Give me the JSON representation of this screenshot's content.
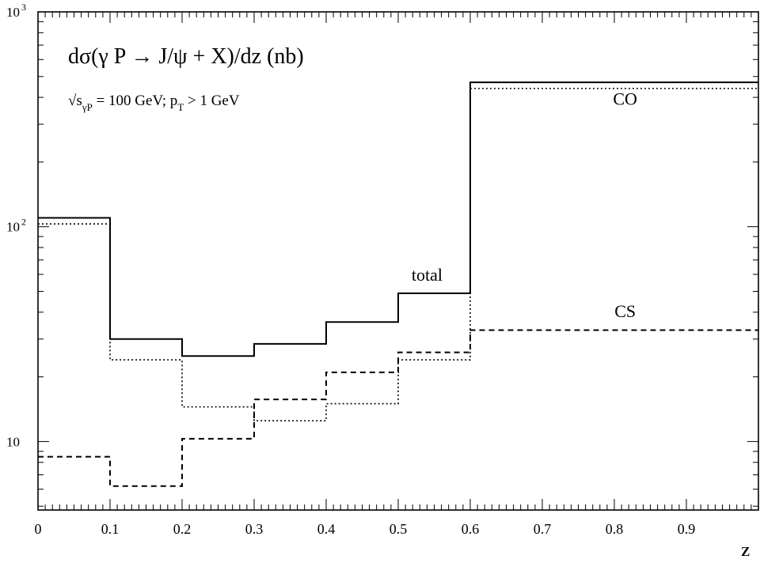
{
  "chart_data": {
    "type": "line",
    "step": true,
    "title": "dσ(γ P → J/ψ + X)/dz (nb)",
    "subtitle": {
      "sqrt": "√",
      "s": "s",
      "s_sub": "γP",
      "mid": " = 100 GeV; p",
      "p_sub": "T",
      "tail": " > 1 GeV"
    },
    "xlabel": "z",
    "xlim": [
      0,
      1
    ],
    "ylim": [
      4.8,
      1000
    ],
    "yscale": "log",
    "x_tick_labels": [
      "0",
      "0.1",
      "0.2",
      "0.3",
      "0.4",
      "0.5",
      "0.6",
      "0.7",
      "0.8",
      "0.9"
    ],
    "y_tick_labels": [
      {
        "value": 1000,
        "base": "10",
        "exp": "3"
      },
      {
        "value": 100,
        "base": "10",
        "exp": "2"
      },
      {
        "value": 10,
        "base": "10",
        "exp": ""
      }
    ],
    "bin_edges": [
      0,
      0.1,
      0.2,
      0.3,
      0.4,
      0.5,
      0.6,
      1.0
    ],
    "series": [
      {
        "name": "total",
        "style": "solid",
        "values": [
          110,
          30,
          25,
          28.5,
          36,
          49,
          470
        ]
      },
      {
        "name": "CO",
        "style": "dotted",
        "values": [
          103,
          24,
          14.5,
          12.5,
          15,
          24,
          440
        ]
      },
      {
        "name": "CS",
        "style": "dashed",
        "values": [
          8.5,
          6.2,
          10.3,
          15.7,
          21,
          26,
          33
        ]
      }
    ],
    "annotations": [
      {
        "text": "total",
        "x": 0.54,
        "y": 56
      },
      {
        "text": "CO",
        "x": 0.815,
        "y": 370
      },
      {
        "text": "CS",
        "x": 0.815,
        "y": 38
      }
    ],
    "grid": false
  }
}
